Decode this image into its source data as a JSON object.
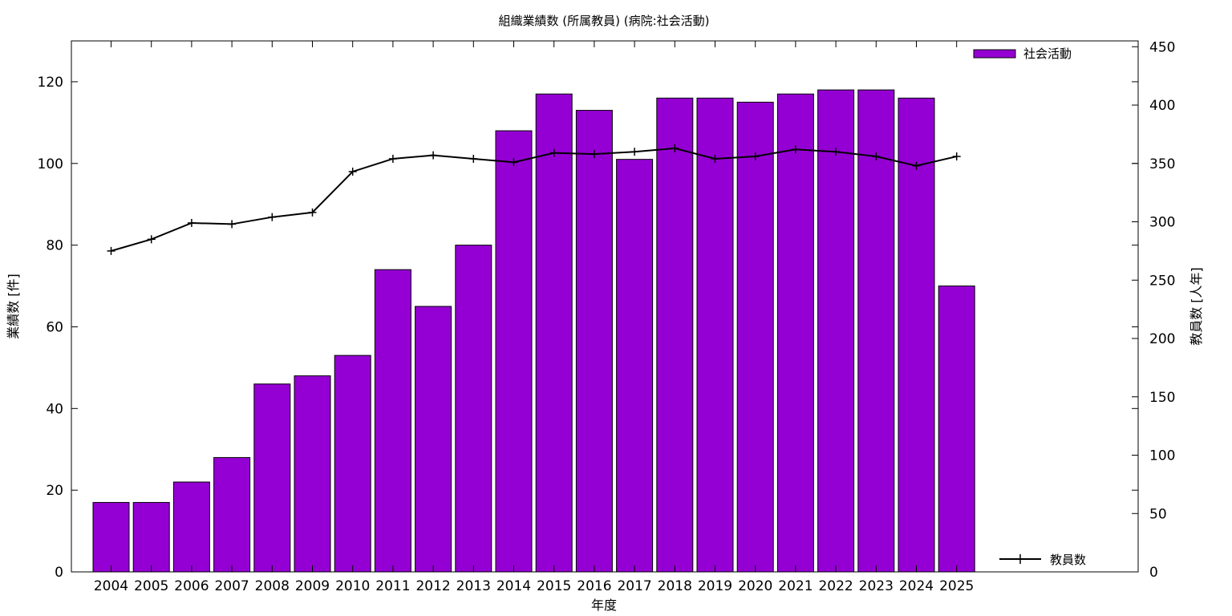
{
  "chart_data": {
    "type": "bar",
    "title": "組織業績数 (所属教員) (病院:社会活動)",
    "xlabel": "年度",
    "ylabel": "業績数 [件]",
    "y2label": "教員数 [人年]",
    "categories": [
      "2004",
      "2005",
      "2006",
      "2007",
      "2008",
      "2009",
      "2010",
      "2011",
      "2012",
      "2013",
      "2014",
      "2015",
      "2016",
      "2017",
      "2018",
      "2019",
      "2020",
      "2021",
      "2022",
      "2023",
      "2024",
      "2025"
    ],
    "ylim": [
      0,
      130
    ],
    "y2lim": [
      0,
      455
    ],
    "yticks": [
      0,
      20,
      40,
      60,
      80,
      100,
      120
    ],
    "y2ticks": [
      0,
      50,
      100,
      150,
      200,
      250,
      300,
      350,
      400,
      450
    ],
    "grid": false,
    "series": [
      {
        "name": "社会活動",
        "type": "bar",
        "axis": "left",
        "color": "#9400d3",
        "values": [
          17,
          17,
          22,
          28,
          46,
          48,
          53,
          74,
          65,
          80,
          108,
          117,
          113,
          101,
          116,
          116,
          115,
          117,
          118,
          118,
          116,
          70
        ]
      },
      {
        "name": "教員数",
        "type": "line",
        "axis": "right",
        "color": "#000000",
        "values": [
          275,
          285,
          299,
          298,
          304,
          308,
          343,
          354,
          357,
          354,
          351,
          359,
          358,
          360,
          363,
          354,
          356,
          362,
          360,
          356,
          348,
          356
        ]
      }
    ],
    "legend": [
      "top-right",
      "bottom-right"
    ]
  }
}
